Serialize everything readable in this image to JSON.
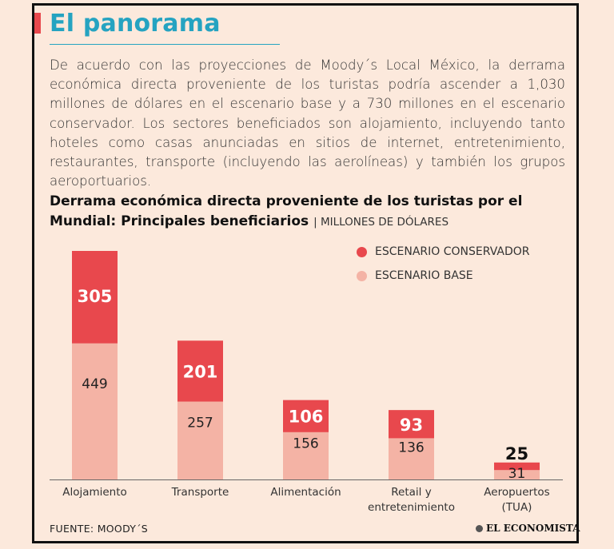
{
  "header": {
    "title": "El panorama",
    "intro": "De acuerdo con las proyecciones de Moody´s Local México, la derrama económica directa proveniente de los turistas podría ascender a 1,030 millones de dólares en el escenario base y a 730 millones en el escenario conservador. Los sectores beneficiados son alojamiento, incluyendo tanto hoteles como casas anunciadas en sitios de internet, entretenimiento, restaurantes, transporte (incluyendo las aerolíneas) y también los grupos aeroportuarios."
  },
  "chart_data": {
    "type": "bar",
    "stacked": true,
    "title": "Derrama económica directa proveniente de los turistas por el Mundial: Principales beneficiarios",
    "unit": "MILLONES DE DÓLARES",
    "categories": [
      "Alojamiento",
      "Transporte",
      "Alimentación",
      "Retail y entretenimiento",
      "Aeropuertos (TUA)"
    ],
    "category_lines": [
      [
        "Alojamiento"
      ],
      [
        "Transporte"
      ],
      [
        "Alimentación"
      ],
      [
        "Retail y",
        "entretenimiento"
      ],
      [
        "Aeropuertos",
        "(TUA)"
      ]
    ],
    "series": [
      {
        "name": "ESCENARIO BASE",
        "values": [
          449,
          257,
          156,
          136,
          31
        ],
        "color": "#f4b3a5"
      },
      {
        "name": "ESCENARIO CONSERVADOR",
        "values": [
          305,
          201,
          106,
          93,
          25
        ],
        "color": "#e8484d"
      }
    ],
    "legend_order": [
      "ESCENARIO CONSERVADOR",
      "ESCENARIO BASE"
    ],
    "legend_position": "top-right",
    "ylim": [
      0,
      754
    ],
    "grid": false
  },
  "footer": {
    "source": "FUENTE: MOODY´S",
    "brand": "EL ECONOMISTA"
  }
}
